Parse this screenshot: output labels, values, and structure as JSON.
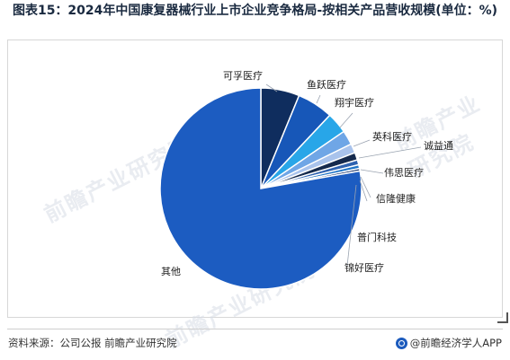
{
  "title": "图表15：2024年中国康复器械行业上市企业竞争格局-按相关产品营收规模(单位：%)",
  "source": "资料来源：公司公报 前瞻产业研究院",
  "brand": "@前瞻经济学人APP",
  "watermark": "前瞻产业研究院",
  "colors": {
    "title": "#1a2a40"
  },
  "chart_data": {
    "type": "pie",
    "title": "图表15：2024年中国康复器械行业上市企业竞争格局-按相关产品营收规模(单位：%)",
    "slices": [
      {
        "label": "可孚医疗",
        "value": 6.2,
        "color": "#0f2d5e"
      },
      {
        "label": "鱼跃医疗",
        "value": 5.8,
        "color": "#1757b8"
      },
      {
        "label": "翔宇医疗",
        "value": 3.4,
        "color": "#28a6e8"
      },
      {
        "label": "英科医疗",
        "value": 2.3,
        "color": "#6fa6e6"
      },
      {
        "label": "诚益通",
        "value": 1.5,
        "color": "#a9c3ec"
      },
      {
        "label": "伟思医疗",
        "value": 1.2,
        "color": "#152a4d"
      },
      {
        "label": "信隆健康",
        "value": 0.8,
        "color": "#2e62b0"
      },
      {
        "label": "普门科技",
        "value": 0.6,
        "color": "#1f74c7"
      },
      {
        "label": "锦好医疗",
        "value": 0.4,
        "color": "#0b2a66"
      },
      {
        "label": "其他",
        "value": 77.8,
        "color": "#1c5cc1"
      }
    ],
    "start_angle_deg": 0,
    "direction": "clockwise",
    "legend": "none"
  }
}
